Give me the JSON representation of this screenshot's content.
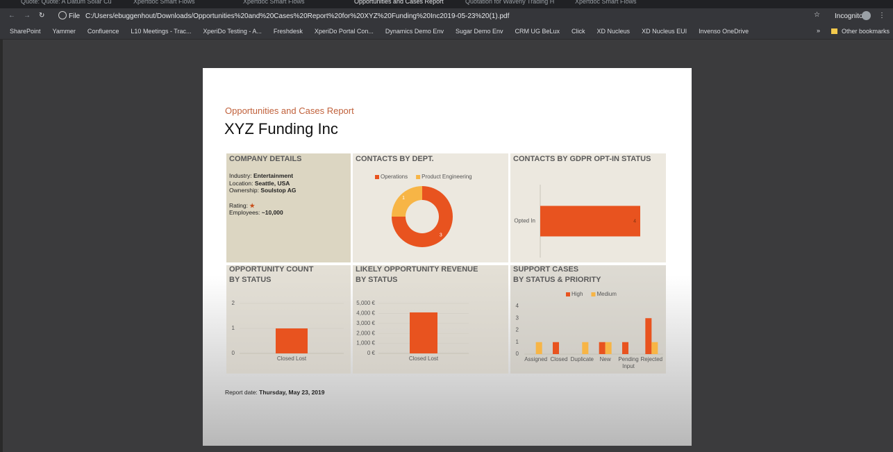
{
  "browser": {
    "tabs": [
      "Quote: Quote: A Datum Solar Cu",
      "Xpertdoc Smart Flows",
      "Xpertdoc Smart Flows",
      "Opportunities and Cases Report",
      "Quotation for Waverly Trading H",
      "Xpertdoc Smart Flows"
    ],
    "scheme": "File",
    "url": "C:/Users/ebuggenhout/Downloads/Opportunities%20and%20Cases%20Report%20for%20XYZ%20Funding%20Inc2019-05-23%20(1).pdf",
    "profile": "Incognito",
    "bookmarks": [
      "SharePoint",
      "Yammer",
      "Confluence",
      "L10 Meetings - Trac...",
      "XperiDo Testing - A...",
      "Freshdesk",
      "XperiDo Portal Con...",
      "Dynamics Demo Env",
      "Sugar Demo Env",
      "CRM UG BeLux",
      "Click",
      "XD Nucleus",
      "XD Nucleus EUI",
      "Invenso OneDrive"
    ],
    "other_bookmarks": "Other bookmarks"
  },
  "report": {
    "subtitle": "Opportunities and Cases Report",
    "title": "XYZ Funding Inc",
    "company_details": {
      "heading": "COMPANY DETAILS",
      "fields": [
        {
          "label": "Industry:",
          "value": "Entertainment"
        },
        {
          "label": "Location:",
          "value": "Seattle, USA"
        },
        {
          "label": "Ownership:",
          "value": "Soulstop AG"
        },
        {
          "label": "Rating:",
          "value": "★"
        },
        {
          "label": "Employees:",
          "value": "~10,000"
        }
      ]
    },
    "report_date": {
      "label": "Report date:",
      "value": "Thursday, May 23, 2019"
    }
  },
  "chart_data": [
    {
      "type": "pie",
      "donut": true,
      "title": "CONTACTS BY DEPT.",
      "categories": [
        "Operations",
        "Product Engineering"
      ],
      "values": [
        3,
        1
      ],
      "colors": [
        "#e8531f",
        "#f7b546"
      ],
      "legend": "top"
    },
    {
      "type": "bar",
      "orientation": "horizontal",
      "title": "CONTACTS BY GDPR OPT-IN STATUS",
      "categories": [
        "Opted In"
      ],
      "values": [
        4
      ],
      "color": "#e8531f"
    },
    {
      "type": "bar",
      "title": "OPPORTUNITY COUNT",
      "subtitle": "BY STATUS",
      "categories": [
        "Closed Lost"
      ],
      "values": [
        1
      ],
      "color": "#e8531f",
      "ylim": [
        0,
        2
      ],
      "yticks": [
        0,
        1,
        2
      ],
      "grid": true
    },
    {
      "type": "bar",
      "title": "LIKELY OPPORTUNITY REVENUE",
      "subtitle": "BY STATUS",
      "categories": [
        "Closed Lost"
      ],
      "values": [
        4100
      ],
      "color": "#e8531f",
      "ylim": [
        0,
        5000
      ],
      "yticks": [
        {
          "value": 0,
          "label": "0 €"
        },
        {
          "value": 1000,
          "label": "1,000 €"
        },
        {
          "value": 2000,
          "label": "2,000 €"
        },
        {
          "value": 3000,
          "label": "3,000 €"
        },
        {
          "value": 4000,
          "label": "4,000 €"
        },
        {
          "value": 5000,
          "label": "5,000 €"
        }
      ],
      "grid": true
    },
    {
      "type": "bar",
      "title": "SUPPORT CASES",
      "subtitle": "BY STATUS & PRIORITY",
      "categories": [
        "Assigned",
        "Closed",
        "Duplicate",
        "New",
        "Pending Input",
        "Rejected"
      ],
      "series": [
        {
          "name": "High",
          "color": "#e8531f",
          "values": [
            0,
            1,
            0,
            1,
            1,
            3
          ]
        },
        {
          "name": "Medium",
          "color": "#f7b546",
          "values": [
            1,
            0,
            1,
            1,
            0,
            1
          ]
        }
      ],
      "ylim": [
        0,
        4
      ],
      "yticks": [
        0,
        1,
        2,
        3,
        4
      ],
      "grid": false,
      "legend": "top"
    }
  ]
}
